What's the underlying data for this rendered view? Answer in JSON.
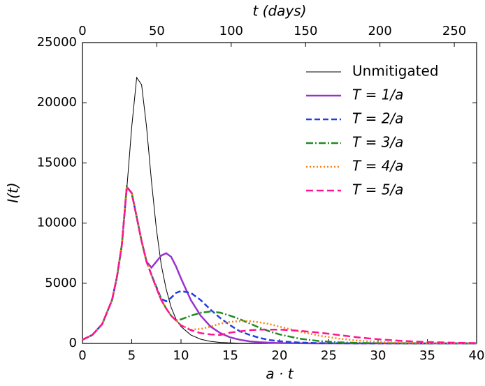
{
  "chart_data": {
    "type": "line",
    "xlabel": "a · t",
    "ylabel": "I(t)",
    "x2label": "t (days)",
    "x": [
      0,
      1,
      2,
      3,
      3.5,
      4,
      4.5,
      5,
      5.5,
      6,
      6.5,
      7,
      7.5,
      8,
      8.5,
      9,
      9.5,
      10,
      11,
      12,
      13,
      14,
      15,
      16,
      17,
      18,
      19,
      20,
      22,
      24,
      26,
      28,
      30,
      32,
      34,
      36,
      38,
      40
    ],
    "xlim": [
      0,
      40
    ],
    "xticks": [
      0,
      5,
      10,
      15,
      20,
      25,
      30,
      35,
      40
    ],
    "x2lim": [
      0,
      265
    ],
    "x2ticks": [
      0,
      50,
      100,
      150,
      200,
      250
    ],
    "ylim": [
      0,
      25000
    ],
    "yticks": [
      0,
      5000,
      10000,
      15000,
      20000,
      25000
    ],
    "legend": "upper right",
    "series": [
      {
        "name": "Unmitigated",
        "color": "#000000",
        "width": 1,
        "dash": "none",
        "values": [
          300,
          700,
          1600,
          3600,
          5500,
          8200,
          12800,
          18000,
          22100,
          21500,
          18000,
          13500,
          9500,
          6500,
          4500,
          3000,
          2000,
          1400,
          700,
          350,
          170,
          80,
          40,
          20,
          10,
          5,
          0,
          0,
          0,
          0,
          0,
          0,
          0,
          0,
          0,
          0,
          0,
          0
        ]
      },
      {
        "name": "T = 1/a",
        "color": "#9932cc",
        "width": 2.5,
        "dash": "none",
        "values": [
          300,
          700,
          1600,
          3600,
          5500,
          8200,
          13000,
          12500,
          10500,
          8500,
          6800,
          6300,
          6800,
          7300,
          7500,
          7200,
          6400,
          5400,
          3600,
          2300,
          1400,
          850,
          500,
          300,
          170,
          100,
          60,
          30,
          10,
          0,
          0,
          0,
          0,
          0,
          0,
          0,
          0,
          0
        ]
      },
      {
        "name": "T = 2/a",
        "color": "#1f3fe0",
        "width": 2.5,
        "dash": "8,4",
        "values": [
          300,
          700,
          1600,
          3600,
          5500,
          8200,
          13000,
          12500,
          10500,
          8500,
          6800,
          5700,
          4700,
          3700,
          3500,
          3800,
          4200,
          4350,
          4200,
          3600,
          2800,
          2100,
          1500,
          1000,
          700,
          450,
          280,
          180,
          70,
          25,
          10,
          0,
          0,
          0,
          0,
          0,
          0,
          0
        ]
      },
      {
        "name": "T = 3/a",
        "color": "#228b22",
        "width": 2.5,
        "dash": "10,3,2,3",
        "values": [
          300,
          700,
          1600,
          3600,
          5500,
          8200,
          13000,
          12500,
          10500,
          8500,
          6800,
          5700,
          4600,
          3600,
          2900,
          2300,
          1900,
          2000,
          2300,
          2550,
          2650,
          2550,
          2300,
          2000,
          1650,
          1300,
          1000,
          750,
          400,
          200,
          90,
          40,
          15,
          5,
          0,
          0,
          0,
          0
        ]
      },
      {
        "name": "T = 4/a",
        "color": "#ff7f0e",
        "width": 2.5,
        "dash": "2,3",
        "values": [
          300,
          700,
          1600,
          3600,
          5500,
          8200,
          13000,
          12500,
          10500,
          8500,
          6800,
          5700,
          4600,
          3600,
          2900,
          2300,
          1900,
          1500,
          1150,
          1200,
          1400,
          1650,
          1800,
          1850,
          1850,
          1750,
          1600,
          1400,
          1000,
          650,
          400,
          230,
          130,
          70,
          35,
          15,
          8,
          4
        ]
      },
      {
        "name": "T = 5/a",
        "color": "#ff1493",
        "width": 2.5,
        "dash": "10,5",
        "values": [
          300,
          700,
          1600,
          3600,
          5500,
          8200,
          13000,
          12500,
          10500,
          8500,
          6800,
          5700,
          4600,
          3600,
          2900,
          2300,
          1900,
          1500,
          1100,
          850,
          750,
          700,
          900,
          1000,
          1100,
          1150,
          1150,
          1150,
          1050,
          900,
          700,
          500,
          350,
          230,
          150,
          90,
          55,
          30
        ]
      }
    ]
  }
}
